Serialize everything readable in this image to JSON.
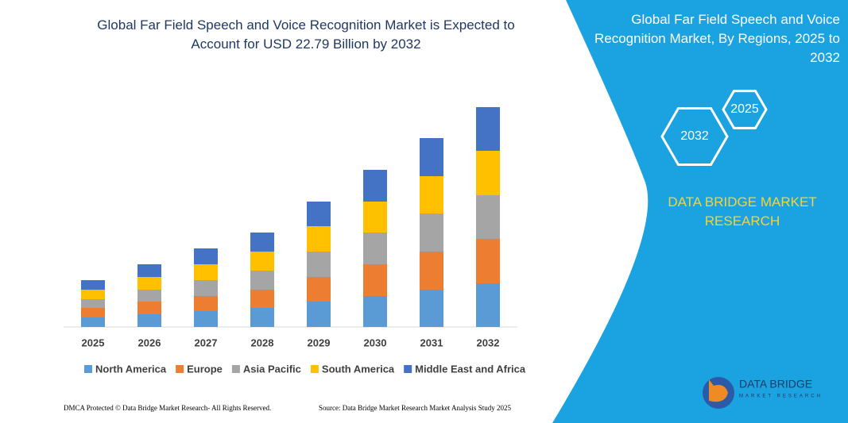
{
  "header": {
    "title": "Global Far Field Speech and Voice Recognition Market is Expected to Account for USD 22.79 Billion by 2032"
  },
  "chart_data": {
    "type": "bar",
    "stacked": true,
    "categories": [
      "2025",
      "2026",
      "2027",
      "2028",
      "2029",
      "2030",
      "2031",
      "2032"
    ],
    "series": [
      {
        "name": "North America",
        "color": "#5b9bd5",
        "values": [
          12,
          16,
          20,
          24,
          32,
          39,
          47,
          55
        ]
      },
      {
        "name": "Europe",
        "color": "#ed7d31",
        "values": [
          12,
          16,
          19,
          23,
          31,
          40,
          48,
          56
        ]
      },
      {
        "name": "Asia Pacific",
        "color": "#a5a5a5",
        "values": [
          11,
          15,
          20,
          24,
          32,
          40,
          48,
          55
        ]
      },
      {
        "name": "South America",
        "color": "#ffc000",
        "values": [
          12,
          16,
          20,
          24,
          32,
          39,
          47,
          56
        ]
      },
      {
        "name": "Middle East and Africa",
        "color": "#4472c4",
        "values": [
          12,
          16,
          20,
          24,
          31,
          40,
          48,
          55
        ]
      }
    ],
    "ylim": [
      0,
      277
    ]
  },
  "panel": {
    "title": "Global Far Field Speech and Voice Recognition Market, By Regions, 2025 to 2032",
    "hex_start": "2025",
    "hex_end": "2032",
    "brand": "DATA BRIDGE MARKET RESEARCH",
    "logo_name": "DATA BRIDGE",
    "logo_sub": "MARKET RESEARCH"
  },
  "footer": {
    "left": "DMCA Protected © Data Bridge Market Research- All Rights Reserved.",
    "right": "Source: Data Bridge Market Research  Market Analysis Study 2025"
  }
}
